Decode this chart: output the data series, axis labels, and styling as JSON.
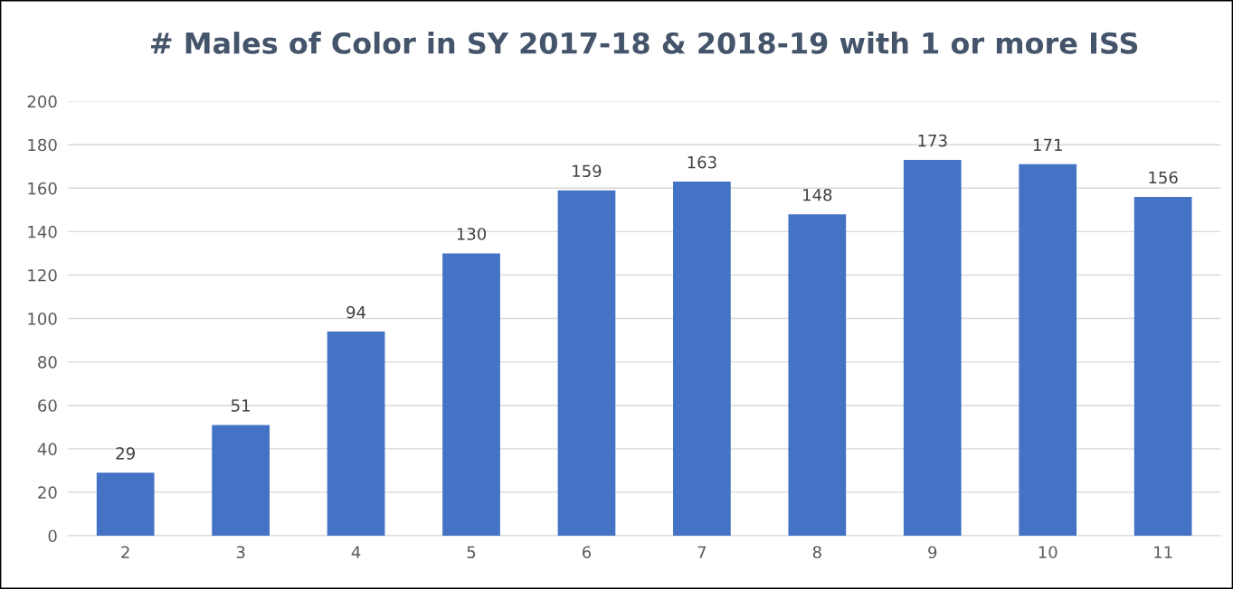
{
  "chart_data": {
    "type": "bar",
    "title": "# Males of Color in SY 2017-18 & 2018-19 with 1 or more ISS",
    "categories": [
      "2",
      "3",
      "4",
      "5",
      "6",
      "7",
      "8",
      "9",
      "10",
      "11"
    ],
    "values": [
      29,
      51,
      94,
      130,
      159,
      163,
      148,
      173,
      171,
      156
    ],
    "color": "#4472c4",
    "ylim": [
      0,
      200
    ],
    "yticks": [
      0,
      20,
      40,
      60,
      80,
      100,
      120,
      140,
      160,
      180,
      200
    ],
    "grid": "y",
    "data_labels": true,
    "legend": false
  }
}
